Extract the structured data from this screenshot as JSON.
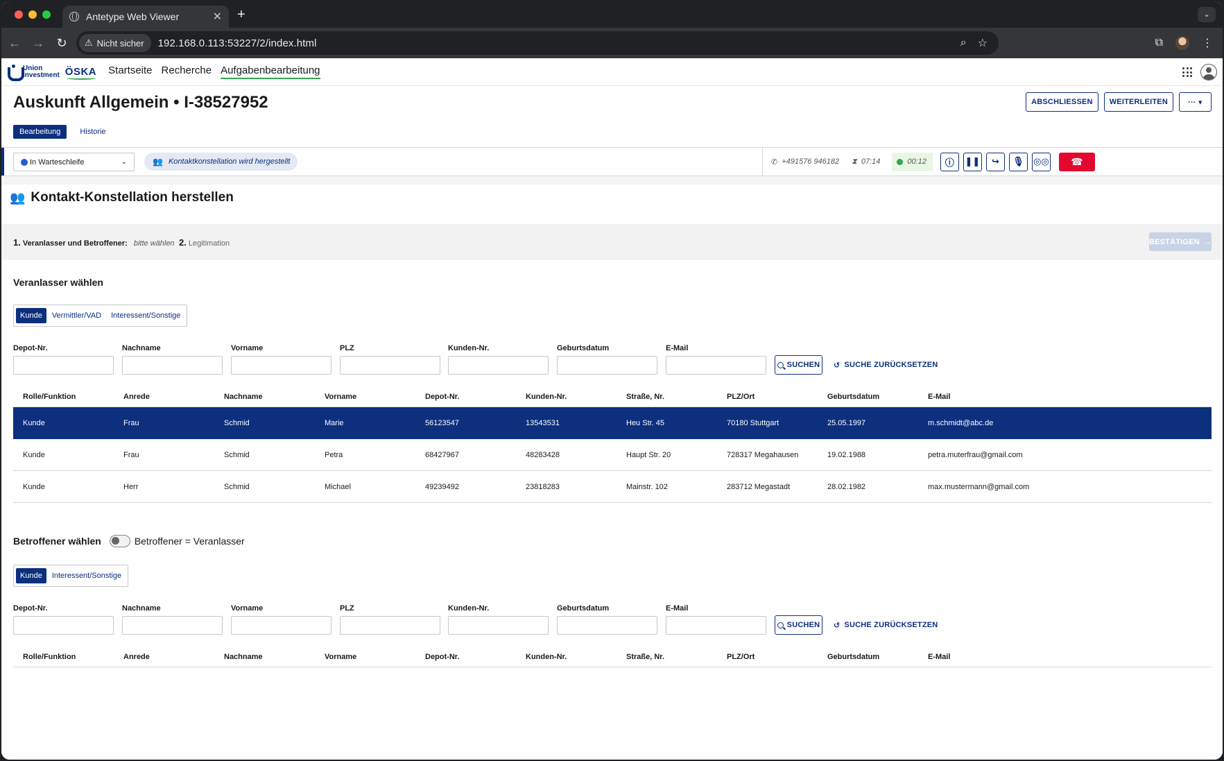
{
  "browser": {
    "tab_title": "Antetype Web Viewer",
    "tab_close": "✕",
    "new_tab": "+",
    "tab_menu": "⌄",
    "security_label": "Nicht sicher",
    "url": "192.168.0.113:53227/2/index.html"
  },
  "app": {
    "logo_line1": "Union",
    "logo_line2": "Investment",
    "logo_oska": "ÖSKA",
    "nav": [
      "Startseite",
      "Recherche",
      "Aufgabenbearbeitung"
    ],
    "active_nav": "Aufgabenbearbeitung"
  },
  "title": {
    "text": "Auskunft Allgemein • I-38527952",
    "actions": {
      "close": "ABSCHLIESSEN",
      "forward": "WEITERLEITEN",
      "more": "··· ▾"
    },
    "tabs": [
      "Bearbeitung",
      "Historie"
    ],
    "active_tab": "Bearbeitung"
  },
  "callbar": {
    "status": "In Warteschleife",
    "chip": "Kontaktkonstellation wird hergestellt",
    "phone": "+491576 946182",
    "wait_time": "07:14",
    "call_time": "00:12",
    "status_dot_color": "#1e5fd6",
    "live_dot_color": "#2fa84f",
    "hangup_color": "#e4072f",
    "buttons": [
      "info-icon",
      "pause-icon",
      "forward-call-icon",
      "microphone-icon",
      "voicemail-icon"
    ]
  },
  "section": {
    "title": "Kontakt-Konstellation herstellen",
    "step1_num": "1.",
    "step1_label": "Veranlasser und Betroffener:",
    "step1_value": "bitte wählen",
    "step2_num": "2.",
    "step2_label": "Legitimation",
    "confirm_label": "BESTÄTIGEN"
  },
  "veranlasser": {
    "title": "Veranlasser wählen",
    "segments": [
      "Kunde",
      "Vermittler/VAD",
      "Interessent/Sonstige"
    ],
    "active_segment": "Kunde",
    "filters": [
      "Depot-Nr.",
      "Nachname",
      "Vorname",
      "PLZ",
      "Kunden-Nr.",
      "Geburtsdatum",
      "E-Mail"
    ],
    "search_label": "SUCHEN",
    "reset_label": "SUCHE ZURÜCKSETZEN",
    "columns": [
      "Rolle/Funktion",
      "Anrede",
      "Nachname",
      "Vorname",
      "Depot-Nr.",
      "Kunden-Nr.",
      "Straße, Nr.",
      "PLZ/Ort",
      "Geburtsdatum",
      "E-Mail"
    ],
    "rows": [
      [
        "Kunde",
        "Frau",
        "Schmid",
        "Marie",
        "56123547",
        "13543531",
        "Heu Str. 45",
        "70180 Stuttgart",
        "25.05.1997",
        "m.schmidt@abc.de"
      ],
      [
        "Kunde",
        "Frau",
        "Schmid",
        "Petra",
        "68427967",
        "48283428",
        "Haupt Str. 20",
        "728317 Megahausen",
        "19.02.1988",
        "petra.muterfrau@gmail.com"
      ],
      [
        "Kunde",
        "Herr",
        "Schmid",
        "Michael",
        "49239492",
        "23818283",
        "Mainstr. 102",
        "283712 Megastadt",
        "28.02.1982",
        "max.mustermann@gmail.com"
      ]
    ],
    "selected_row": 0
  },
  "betroffener": {
    "title": "Betroffener wählen",
    "toggle_label": "Betroffener = Veranlasser",
    "toggle_on": false,
    "segments": [
      "Kunde",
      "Interessent/Sonstige"
    ],
    "active_segment": "Kunde",
    "filters": [
      "Depot-Nr.",
      "Nachname",
      "Vorname",
      "PLZ",
      "Kunden-Nr.",
      "Geburtsdatum",
      "E-Mail"
    ],
    "search_label": "SUCHEN",
    "reset_label": "SUCHE ZURÜCKSETZEN",
    "columns": [
      "Rolle/Funktion",
      "Anrede",
      "Nachname",
      "Vorname",
      "Depot-Nr.",
      "Kunden-Nr.",
      "Straße, Nr.",
      "PLZ/Ort",
      "Geburtsdatum",
      "E-Mail"
    ]
  }
}
